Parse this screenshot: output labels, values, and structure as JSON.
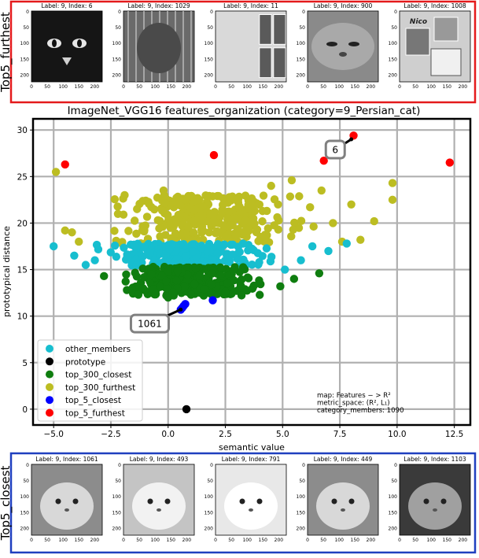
{
  "title": "ImageNet_VGG16 features_organization (category=9_Persian_cat)",
  "top_panel": {
    "label": "Top5_furthest",
    "border_color": "#e41a1c",
    "thumbs": [
      {
        "caption": "Label: 9, Index: 6",
        "tone": "dark"
      },
      {
        "caption": "Label: 9, Index: 1029",
        "tone": "cage"
      },
      {
        "caption": "Label: 9, Index: 11",
        "tone": "collage"
      },
      {
        "caption": "Label: 9, Index: 900",
        "tone": "face"
      },
      {
        "caption": "Label: 9, Index: 1008",
        "tone": "scrapbook",
        "inner_text": "Nico"
      }
    ],
    "thumb_ticks": [
      "0",
      "50",
      "100",
      "150",
      "200"
    ]
  },
  "bottom_panel": {
    "label": "Top5_closest",
    "border_color": "#1f3fbf",
    "thumbs": [
      {
        "caption": "Label: 9, Index: 1061",
        "tone": "mid"
      },
      {
        "caption": "Label: 9, Index: 493",
        "tone": "light"
      },
      {
        "caption": "Label: 9, Index: 791",
        "tone": "white"
      },
      {
        "caption": "Label: 9, Index: 449",
        "tone": "mid"
      },
      {
        "caption": "Label: 9, Index: 1103",
        "tone": "darkbg"
      }
    ],
    "thumb_ticks": [
      "0",
      "50",
      "100",
      "150",
      "200"
    ]
  },
  "chart_data": {
    "type": "scatter",
    "xlabel": "semantic value",
    "ylabel": "prototypical distance",
    "xlim": [
      -5.9,
      13.2
    ],
    "ylim": [
      -1.7,
      31.2
    ],
    "xticks": [
      -5.0,
      -2.5,
      0.0,
      2.5,
      5.0,
      7.5,
      10.0,
      12.5
    ],
    "xtick_labels": [
      "−5.0",
      "−2.5",
      "0.0",
      "2.5",
      "5.0",
      "7.5",
      "10.0",
      "12.5"
    ],
    "yticks": [
      0,
      5,
      10,
      15,
      20,
      25,
      30
    ],
    "grid": true,
    "legend_position": "lower-left",
    "series": [
      {
        "name": "other_members",
        "color": "#17becf",
        "cloud": {
          "band": [
            15.3,
            17.8
          ],
          "x_range": [
            -4,
            5.5
          ],
          "n": 260
        },
        "points": [
          [
            -5.0,
            17.5
          ],
          [
            -4.1,
            16.5
          ],
          [
            -3.2,
            16.0
          ],
          [
            6.3,
            17.5
          ],
          [
            7.0,
            17.0
          ],
          [
            7.8,
            17.8
          ],
          [
            5.8,
            16.0
          ],
          [
            -3.6,
            15.5
          ],
          [
            5.1,
            15.0
          ]
        ]
      },
      {
        "name": "prototype",
        "color": "#000000",
        "points": [
          [
            0.8,
            0.0
          ]
        ]
      },
      {
        "name": "top_300_closest",
        "color": "#0f7d0f",
        "cloud": {
          "band": [
            12.2,
            15.3
          ],
          "x_range": [
            -2.8,
            4.8
          ],
          "n": 300
        },
        "points": [
          [
            -1.8,
            12.8
          ],
          [
            -1.3,
            12.3
          ],
          [
            0.0,
            12.0
          ],
          [
            1.0,
            12.3
          ],
          [
            2.5,
            12.6
          ],
          [
            4.9,
            13.2
          ],
          [
            5.5,
            14.0
          ],
          [
            6.6,
            14.6
          ],
          [
            -2.8,
            14.3
          ]
        ]
      },
      {
        "name": "top_300_furthest",
        "color": "#bcbd22",
        "cloud": {
          "band": [
            17.8,
            23.0
          ],
          "x_range": [
            -3.8,
            7.2
          ],
          "n": 300
        },
        "points": [
          [
            -4.9,
            25.5
          ],
          [
            -4.5,
            19.2
          ],
          [
            -4.2,
            19.0
          ],
          [
            -3.9,
            18.0
          ],
          [
            -1.9,
            23.0
          ],
          [
            -0.2,
            23.5
          ],
          [
            4.5,
            24.0
          ],
          [
            4.8,
            22.0
          ],
          [
            6.7,
            23.5
          ],
          [
            7.2,
            20.0
          ],
          [
            7.6,
            18.0
          ],
          [
            8.4,
            18.2
          ],
          [
            8.0,
            22.0
          ],
          [
            9.0,
            20.2
          ],
          [
            9.8,
            24.3
          ],
          [
            9.8,
            22.5
          ],
          [
            6.2,
            21.7
          ],
          [
            5.4,
            24.6
          ]
        ]
      },
      {
        "name": "top_5_closest",
        "color": "#0000ff",
        "points": [
          [
            0.55,
            10.7
          ],
          [
            0.62,
            10.9
          ],
          [
            0.68,
            11.1
          ],
          [
            0.75,
            11.3
          ],
          [
            1.95,
            11.7
          ]
        ]
      },
      {
        "name": "top_5_furthest",
        "color": "#ff0000",
        "points": [
          [
            8.1,
            29.4
          ],
          [
            2.0,
            27.3
          ],
          [
            -4.5,
            26.3
          ],
          [
            6.8,
            26.7
          ],
          [
            12.3,
            26.5
          ]
        ]
      }
    ],
    "annotations": [
      {
        "text": "6",
        "target": [
          8.0,
          29.0
        ],
        "label_at": [
          7.3,
          27.9
        ]
      },
      {
        "text": "1061",
        "target": [
          0.55,
          10.7
        ],
        "label_at": [
          -0.8,
          9.2
        ]
      }
    ],
    "info_box": [
      "map: Features − > R²",
      "metric_space: (R², L₁)",
      "category_members: 1090"
    ]
  }
}
